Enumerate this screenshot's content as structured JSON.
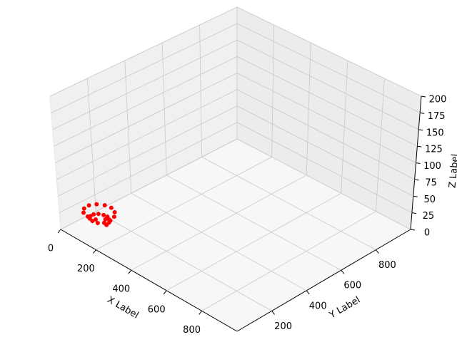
{
  "chart_data": {
    "type": "scatter3d",
    "xlabel": "X Label",
    "ylabel": "Y Label",
    "zlabel": "Z Label",
    "xlim": [
      0,
      1000
    ],
    "ylim": [
      0,
      1000
    ],
    "zlim": [
      0,
      200
    ],
    "xticks": [
      0,
      200,
      400,
      600,
      800
    ],
    "yticks": [
      200,
      400,
      600,
      800
    ],
    "zticks": [
      0,
      25,
      50,
      75,
      100,
      125,
      150,
      175,
      200
    ],
    "grid": true,
    "series": [
      {
        "color": "#ff0000",
        "x": [
          100,
          98,
          87,
          70,
          51,
          35,
          28,
          32,
          47,
          70,
          95,
          115,
          124,
          118,
          99,
          70,
          39,
          15,
          4,
          11,
          35,
          70,
          107,
          136
        ],
        "y": [
          160,
          176,
          189,
          196,
          193,
          180,
          160,
          138,
          120,
          112,
          117,
          134,
          160,
          188,
          210,
          220,
          214,
          192,
          160,
          126,
          99,
          88,
          96,
          122
        ],
        "z": [
          0,
          1,
          2,
          3,
          3,
          4,
          5,
          6,
          7,
          8,
          8,
          9,
          10,
          11,
          12,
          13,
          13,
          14,
          15,
          16,
          17,
          18,
          18,
          19
        ]
      }
    ]
  }
}
